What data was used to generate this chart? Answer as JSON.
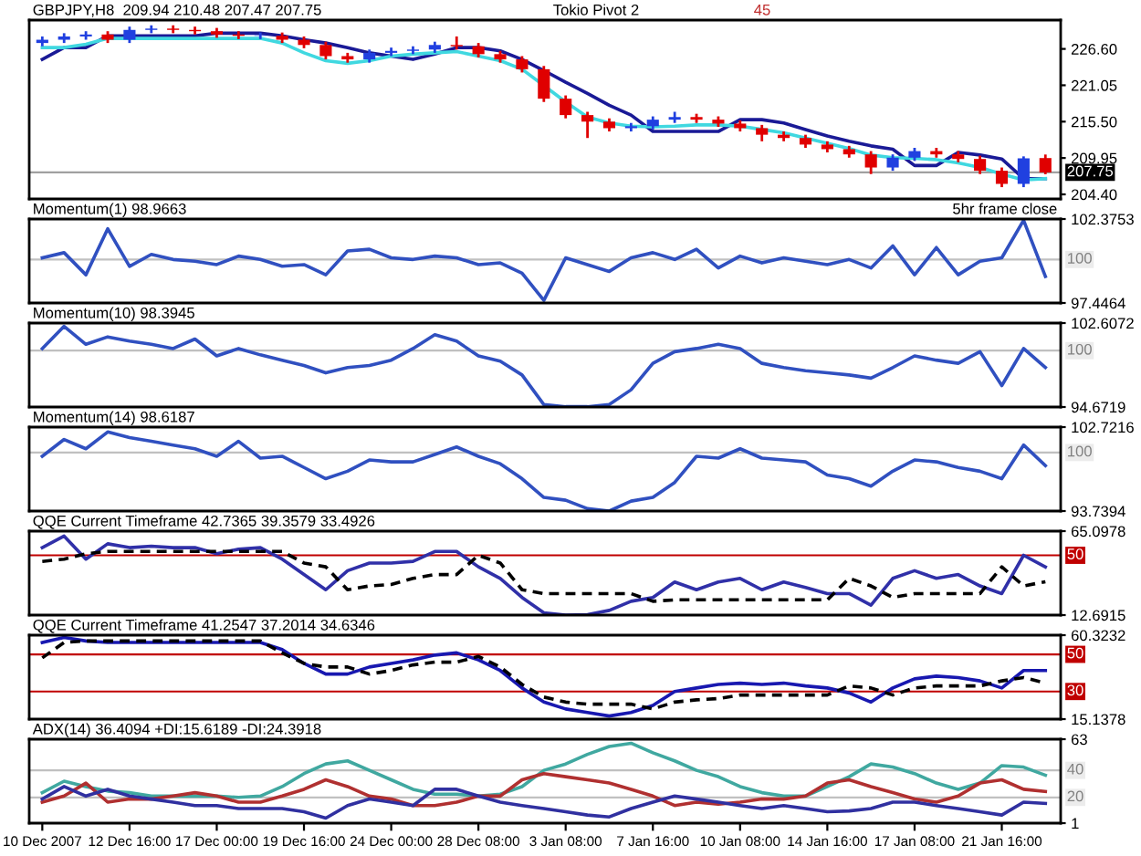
{
  "chart_data": [
    {
      "type": "candlestick",
      "title": "GBPJPY,H8  209.94 210.48 207.47 207.75",
      "categories": [
        null,
        null,
        null,
        null,
        null,
        null,
        null,
        null,
        null,
        null,
        null,
        null,
        null,
        null,
        null,
        null,
        null,
        null,
        null,
        null,
        null,
        null,
        null,
        null,
        null,
        null,
        null,
        null,
        null,
        null,
        null,
        null,
        null,
        null,
        null,
        null,
        null,
        null,
        null,
        null,
        null,
        null,
        null,
        null,
        null,
        null,
        null
      ],
      "ohlc": [
        [
          227.5,
          228.5,
          227.0,
          228.0
        ],
        [
          228.0,
          229.0,
          227.5,
          228.5
        ],
        [
          228.5,
          229.3,
          228.0,
          228.8
        ],
        [
          228.8,
          229.3,
          227.5,
          228.0
        ],
        [
          228.0,
          230.0,
          227.5,
          229.5
        ],
        [
          229.5,
          230.2,
          229.0,
          229.7
        ],
        [
          229.7,
          230.2,
          229.0,
          229.5
        ],
        [
          229.5,
          230.0,
          228.8,
          229.3
        ],
        [
          229.3,
          229.8,
          228.3,
          228.8
        ],
        [
          228.8,
          229.3,
          228.1,
          228.6
        ],
        [
          228.6,
          229.1,
          228.1,
          228.6
        ],
        [
          228.6,
          229.1,
          227.5,
          228.0
        ],
        [
          228.0,
          228.5,
          226.7,
          227.2
        ],
        [
          227.2,
          227.7,
          225.0,
          225.5
        ],
        [
          225.5,
          226.0,
          224.5,
          225.0
        ],
        [
          225.0,
          226.5,
          224.5,
          226.0
        ],
        [
          226.0,
          226.8,
          225.5,
          226.3
        ],
        [
          226.3,
          227.0,
          225.8,
          226.5
        ],
        [
          226.5,
          227.7,
          226.0,
          227.2
        ],
        [
          227.2,
          228.5,
          226.5,
          227.0
        ],
        [
          227.0,
          227.5,
          225.3,
          225.8
        ],
        [
          225.8,
          226.3,
          224.5,
          225.0
        ],
        [
          225.0,
          225.5,
          223.0,
          223.5
        ],
        [
          223.5,
          224.0,
          218.5,
          219.0
        ],
        [
          219.0,
          219.5,
          216.0,
          216.5
        ],
        [
          216.5,
          217.0,
          213.0,
          215.5
        ],
        [
          215.5,
          216.0,
          214.0,
          214.5
        ],
        [
          214.5,
          215.3,
          214.0,
          214.8
        ],
        [
          214.8,
          216.3,
          214.3,
          215.8
        ],
        [
          215.8,
          217.0,
          215.3,
          216.2
        ],
        [
          216.2,
          216.7,
          215.3,
          215.8
        ],
        [
          215.8,
          216.3,
          214.7,
          215.2
        ],
        [
          215.2,
          215.7,
          214.0,
          214.5
        ],
        [
          214.5,
          215.0,
          212.5,
          213.5
        ],
        [
          213.5,
          214.0,
          212.5,
          213.0
        ],
        [
          213.0,
          213.5,
          211.5,
          212.0
        ],
        [
          212.0,
          212.5,
          210.8,
          211.3
        ],
        [
          211.3,
          211.8,
          210.0,
          210.5
        ],
        [
          210.5,
          211.0,
          207.5,
          208.5
        ],
        [
          208.5,
          210.5,
          208.0,
          210.0
        ],
        [
          210.0,
          211.5,
          209.5,
          211.0
        ],
        [
          211.0,
          211.5,
          210.0,
          210.5
        ],
        [
          210.5,
          211.0,
          209.3,
          209.8
        ],
        [
          209.8,
          210.3,
          207.5,
          208.0
        ],
        [
          208.0,
          208.5,
          205.5,
          206.0
        ],
        [
          206.0,
          210.2,
          205.5,
          209.9
        ],
        [
          209.94,
          210.48,
          207.47,
          207.75
        ]
      ],
      "colors": [
        "#2040e0",
        "#2040e0",
        "#2040e0",
        "#e00000",
        "#2040e0",
        "#2040e0",
        "#e00000",
        "#e00000",
        "#e00000",
        "#e00000",
        "#2040e0",
        "#e00000",
        "#e00000",
        "#e00000",
        "#e00000",
        "#2040e0",
        "#2040e0",
        "#2040e0",
        "#2040e0",
        "#e00000",
        "#e00000",
        "#e00000",
        "#e00000",
        "#e00000",
        "#e00000",
        "#e00000",
        "#e00000",
        "#2040e0",
        "#2040e0",
        "#2040e0",
        "#e00000",
        "#e00000",
        "#e00000",
        "#e00000",
        "#e00000",
        "#e00000",
        "#e00000",
        "#e00000",
        "#e00000",
        "#2040e0",
        "#2040e0",
        "#e00000",
        "#e00000",
        "#e00000",
        "#e00000",
        "#2040e0",
        "#e00000"
      ],
      "series": [
        {
          "type": "line",
          "color": "#1a1a96",
          "values": [
            225.0,
            226.8,
            226.8,
            228.6,
            228.6,
            228.6,
            228.6,
            228.6,
            229.0,
            229.0,
            229.0,
            228.6,
            228.0,
            227.5,
            226.8,
            226.0,
            225.5,
            225.0,
            225.8,
            226.8,
            226.8,
            226.3,
            225.0,
            223.3,
            221.5,
            219.8,
            218.0,
            216.5,
            214.0,
            214.0,
            214.0,
            214.0,
            215.8,
            215.8,
            215.3,
            214.3,
            213.3,
            212.5,
            211.8,
            211.3,
            208.8,
            208.8,
            210.8,
            210.4,
            209.8,
            206.8,
            206.8
          ]
        },
        {
          "type": "line",
          "color": "#40d8e0",
          "values": [
            226.8,
            226.8,
            227.3,
            228.2,
            228.2,
            228.2,
            228.2,
            228.2,
            228.2,
            228.2,
            228.2,
            227.5,
            226.0,
            224.8,
            224.4,
            224.8,
            225.5,
            225.8,
            226.0,
            226.2,
            225.5,
            224.8,
            223.5,
            221.0,
            218.5,
            216.2,
            215.3,
            214.8,
            214.7,
            214.8,
            215.0,
            215.0,
            214.8,
            214.3,
            213.8,
            213.0,
            212.2,
            211.4,
            210.4,
            210.0,
            209.9,
            209.7,
            209.2,
            208.5,
            207.5,
            206.6,
            206.8
          ]
        }
      ],
      "ylim": [
        203.7,
        231.0
      ],
      "yticks": [
        {
          "value": 226.6,
          "label": "226.60"
        },
        {
          "value": 221.05,
          "label": "221.05"
        },
        {
          "value": 215.5,
          "label": "215.50"
        },
        {
          "value": 209.95,
          "label": "209.95"
        },
        {
          "value": 204.4,
          "label": "204.40"
        }
      ],
      "ref_lines": [
        {
          "axis": "y",
          "value": 207.75,
          "label": "207.75",
          "color": "#a0a0a0"
        }
      ],
      "annotations": [
        "Tokio Pivot 2",
        "45"
      ],
      "tick_labels": "y"
    },
    {
      "type": "line",
      "title": "Momentum(1) 98.9663",
      "categories": [
        null,
        null,
        null,
        null,
        null,
        null,
        null,
        null,
        null,
        null,
        null,
        null,
        null,
        null,
        null,
        null,
        null,
        null,
        null,
        null,
        null,
        null,
        null,
        null,
        null,
        null,
        null,
        null,
        null,
        null,
        null,
        null,
        null,
        null,
        null,
        null,
        null,
        null,
        null,
        null,
        null,
        null,
        null,
        null,
        null,
        null,
        null
      ],
      "series": [
        {
          "color": "#3050c0",
          "values": [
            100.1,
            100.4,
            99.1,
            101.8,
            99.6,
            100.3,
            100.0,
            99.9,
            99.7,
            100.2,
            100.0,
            99.6,
            99.7,
            99.1,
            100.5,
            100.6,
            100.1,
            100.0,
            100.2,
            100.1,
            99.7,
            99.8,
            99.2,
            97.6,
            100.1,
            99.7,
            99.3,
            100.1,
            100.4,
            100.0,
            100.6,
            99.5,
            100.2,
            99.8,
            100.1,
            99.9,
            99.7,
            100.0,
            99.5,
            100.8,
            99.1,
            100.7,
            99.1,
            99.9,
            100.1,
            102.3,
            99.0
          ]
        }
      ],
      "ylim": [
        97.4464,
        102.3753
      ],
      "yticks": [
        102.3753,
        97.4464
      ],
      "ref_lines": [
        {
          "axis": "y",
          "value": 100,
          "label": "100",
          "color": "#c0c0c0"
        }
      ],
      "annotations": [
        "5hr frame close"
      ],
      "tick_labels": "y"
    },
    {
      "type": "line",
      "title": "Momentum(10) 98.3945",
      "categories": [
        null,
        null,
        null,
        null,
        null,
        null,
        null,
        null,
        null,
        null,
        null,
        null,
        null,
        null,
        null,
        null,
        null,
        null,
        null,
        null,
        null,
        null,
        null,
        null,
        null,
        null,
        null,
        null,
        null,
        null,
        null,
        null,
        null,
        null,
        null,
        null,
        null,
        null,
        null,
        null,
        null,
        null,
        null,
        null,
        null,
        null,
        null
      ],
      "series": [
        {
          "color": "#3050c0",
          "values": [
            100.2,
            102.3,
            100.6,
            101.3,
            100.9,
            100.6,
            100.2,
            101.1,
            99.5,
            100.2,
            99.6,
            99.1,
            98.6,
            97.9,
            98.4,
            98.6,
            99.1,
            100.2,
            101.5,
            100.9,
            99.5,
            99.0,
            97.7,
            94.9,
            94.7,
            94.7,
            94.9,
            96.3,
            98.8,
            99.9,
            100.2,
            100.6,
            100.2,
            98.8,
            98.4,
            98.1,
            97.9,
            97.7,
            97.4,
            98.4,
            99.5,
            99.1,
            98.8,
            99.9,
            96.7,
            100.2,
            98.4
          ]
        }
      ],
      "ylim": [
        94.6719,
        102.6072
      ],
      "yticks": [
        102.6072,
        94.6719
      ],
      "ref_lines": [
        {
          "axis": "y",
          "value": 100,
          "label": "100",
          "color": "#c0c0c0"
        }
      ],
      "tick_labels": "y"
    },
    {
      "type": "line",
      "title": "Momentum(14) 98.6187",
      "categories": [
        null,
        null,
        null,
        null,
        null,
        null,
        null,
        null,
        null,
        null,
        null,
        null,
        null,
        null,
        null,
        null,
        null,
        null,
        null,
        null,
        null,
        null,
        null,
        null,
        null,
        null,
        null,
        null,
        null,
        null,
        null,
        null,
        null,
        null,
        null,
        null,
        null,
        null,
        null,
        null,
        null,
        null,
        null,
        null,
        null,
        null,
        null
      ],
      "series": [
        {
          "color": "#3050c0",
          "values": [
            99.6,
            101.4,
            100.4,
            102.2,
            101.6,
            101.2,
            100.8,
            100.4,
            99.6,
            101.2,
            99.4,
            99.6,
            98.4,
            97.2,
            98.0,
            99.2,
            99.0,
            99.0,
            99.8,
            100.6,
            99.6,
            98.8,
            97.2,
            95.2,
            94.9,
            94.0,
            93.74,
            94.8,
            95.2,
            96.8,
            99.6,
            99.4,
            100.4,
            99.4,
            99.2,
            99.0,
            97.6,
            97.2,
            96.4,
            98.0,
            99.2,
            99.0,
            98.4,
            98.0,
            97.2,
            100.8,
            98.6
          ]
        }
      ],
      "ylim": [
        93.7394,
        102.7216
      ],
      "yticks": [
        102.7216,
        93.7394
      ],
      "ref_lines": [
        {
          "axis": "y",
          "value": 100,
          "label": "100",
          "color": "#c0c0c0"
        }
      ],
      "tick_labels": "y"
    },
    {
      "type": "line",
      "title": "QQE Current Timeframe 42.7365 39.3579 33.4926",
      "categories": [
        null,
        null,
        null,
        null,
        null,
        null,
        null,
        null,
        null,
        null,
        null,
        null,
        null,
        null,
        null,
        null,
        null,
        null,
        null,
        null,
        null,
        null,
        null,
        null,
        null,
        null,
        null,
        null,
        null,
        null,
        null,
        null,
        null,
        null,
        null,
        null,
        null,
        null,
        null,
        null,
        null,
        null,
        null,
        null,
        null,
        null,
        null
      ],
      "series": [
        {
          "color": "#3030a8",
          "values": [
            54.8,
            62.0,
            47.6,
            57.2,
            54.8,
            55.7,
            54.8,
            54.8,
            51.0,
            53.8,
            54.8,
            47.6,
            38.0,
            28.5,
            40.4,
            45.2,
            45.2,
            46.2,
            52.4,
            52.4,
            42.8,
            35.6,
            23.7,
            14.1,
            12.7,
            13.0,
            15.6,
            21.3,
            23.7,
            33.3,
            28.5,
            33.3,
            35.6,
            28.5,
            33.3,
            29.9,
            26.1,
            26.1,
            18.9,
            35.6,
            40.4,
            35.6,
            38.0,
            30.9,
            26.1,
            50.0,
            42.7
          ]
        },
        {
          "color": "#000000",
          "line_style": "dashed",
          "values": [
            46.2,
            47.6,
            51.0,
            52.4,
            52.4,
            52.4,
            52.4,
            52.4,
            52.4,
            52.4,
            52.4,
            52.4,
            45.2,
            42.8,
            28.5,
            30.9,
            31.8,
            35.6,
            38.0,
            38.0,
            50.0,
            45.2,
            28.5,
            26.1,
            26.1,
            26.1,
            26.1,
            26.1,
            21.3,
            22.2,
            22.2,
            22.2,
            22.2,
            22.2,
            22.2,
            22.2,
            22.2,
            35.6,
            30.9,
            23.7,
            26.1,
            26.1,
            26.1,
            26.1,
            42.8,
            30.9,
            33.5
          ]
        }
      ],
      "ylim": [
        12.6915,
        65.0978
      ],
      "yticks": [
        65.0978,
        12.6915
      ],
      "ref_lines": [
        {
          "axis": "y",
          "value": 50,
          "label": "50",
          "color": "#c00000"
        }
      ],
      "tick_labels": "y"
    },
    {
      "type": "line",
      "title": "QQE Current Timeframe 41.2547 37.2014 34.6346",
      "categories": [
        null,
        null,
        null,
        null,
        null,
        null,
        null,
        null,
        null,
        null,
        null,
        null,
        null,
        null,
        null,
        null,
        null,
        null,
        null,
        null,
        null,
        null,
        null,
        null,
        null,
        null,
        null,
        null,
        null,
        null,
        null,
        null,
        null,
        null,
        null,
        null,
        null,
        null,
        null,
        null,
        null,
        null,
        null,
        null,
        null,
        null,
        null
      ],
      "series": [
        {
          "color": "#1818b0",
          "values": [
            56.4,
            59.1,
            57.2,
            56.4,
            56.4,
            56.4,
            56.4,
            56.4,
            56.4,
            56.4,
            56.4,
            52.6,
            45.1,
            39.4,
            39.4,
            43.2,
            45.1,
            47.0,
            49.6,
            50.8,
            47.0,
            41.3,
            31.9,
            24.3,
            20.6,
            18.7,
            16.8,
            18.7,
            22.5,
            30.0,
            31.9,
            33.8,
            34.5,
            33.8,
            34.5,
            33.0,
            31.9,
            29.2,
            24.3,
            31.9,
            36.8,
            38.3,
            37.5,
            35.7,
            31.9,
            41.3,
            41.3
          ]
        },
        {
          "color": "#000000",
          "line_style": "dashed",
          "values": [
            48.1,
            56.4,
            57.2,
            57.2,
            57.2,
            57.2,
            57.2,
            57.2,
            57.2,
            57.2,
            57.2,
            50.8,
            45.1,
            43.2,
            43.2,
            39.4,
            41.3,
            44.3,
            45.8,
            45.8,
            48.9,
            43.2,
            33.8,
            27.0,
            24.3,
            23.2,
            23.2,
            23.2,
            20.6,
            24.3,
            25.5,
            26.2,
            28.1,
            28.1,
            28.1,
            28.1,
            28.1,
            33.0,
            31.9,
            28.1,
            31.9,
            33.0,
            33.0,
            33.0,
            35.7,
            37.5,
            34.6
          ]
        }
      ],
      "ylim": [
        15.1378,
        60.3232
      ],
      "yticks": [
        60.3232,
        15.1378
      ],
      "ref_lines": [
        {
          "axis": "y",
          "value": 50,
          "label": "50",
          "color": "#c00000"
        },
        {
          "axis": "y",
          "value": 30,
          "label": "30",
          "color": "#c00000"
        }
      ],
      "tick_labels": "y"
    },
    {
      "type": "line",
      "title": "ADX(14) 36.4094 +DI:15.6189 -DI:24.3918",
      "categories": [
        "10 Dec 2007",
        null,
        null,
        null,
        "12 Dec 16:00",
        null,
        null,
        null,
        "17 Dec 00:00",
        null,
        null,
        null,
        "19 Dec 16:00",
        null,
        null,
        null,
        "24 Dec 00:00",
        null,
        null,
        null,
        "28 Dec 08:00",
        null,
        null,
        null,
        "3 Jan 08:00",
        null,
        null,
        null,
        "7 Jan 16:00",
        null,
        null,
        null,
        "10 Jan 08:00",
        null,
        null,
        null,
        "14 Jan 16:00",
        null,
        null,
        null,
        "17 Jan 08:00",
        null,
        null,
        null,
        "21 Jan 16:00",
        null,
        null
      ],
      "series": [
        {
          "color": "#40a8a0",
          "values": [
            23.5,
            32.0,
            28.0,
            24.7,
            23.5,
            21.0,
            21.0,
            21.0,
            21.0,
            20.0,
            21.0,
            28.0,
            37.6,
            44.7,
            47.0,
            40.0,
            33.0,
            26.0,
            22.4,
            22.4,
            21.0,
            22.4,
            28.0,
            40.0,
            44.7,
            51.8,
            57.6,
            60.0,
            53.0,
            47.0,
            40.0,
            35.3,
            28.0,
            23.5,
            21.0,
            21.0,
            28.0,
            35.3,
            44.7,
            42.4,
            37.6,
            30.6,
            26.0,
            30.6,
            43.5,
            42.4,
            36.4
          ]
        },
        {
          "color": "#b03030",
          "values": [
            16.5,
            21.0,
            30.6,
            16.5,
            18.8,
            18.8,
            21.0,
            23.5,
            21.0,
            16.5,
            16.5,
            21.0,
            26.0,
            33.0,
            28.0,
            21.0,
            18.8,
            14.0,
            14.0,
            16.5,
            21.0,
            21.0,
            33.0,
            37.6,
            35.3,
            33.0,
            30.6,
            26.0,
            21.0,
            14.0,
            16.5,
            15.0,
            16.5,
            18.8,
            18.8,
            21.0,
            30.6,
            33.0,
            28.0,
            23.5,
            18.8,
            16.5,
            21.0,
            30.6,
            33.0,
            26.0,
            24.4
          ]
        },
        {
          "color": "#3030a0",
          "values": [
            18.8,
            28.0,
            21.0,
            26.0,
            21.0,
            18.8,
            16.5,
            14.0,
            14.0,
            11.8,
            11.8,
            11.8,
            9.4,
            4.7,
            14.0,
            18.8,
            16.5,
            14.0,
            26.0,
            26.0,
            21.0,
            16.5,
            14.0,
            11.8,
            9.4,
            7.0,
            5.6,
            11.8,
            16.5,
            21.0,
            18.8,
            16.5,
            14.0,
            11.8,
            14.0,
            11.8,
            9.4,
            10.0,
            11.8,
            16.5,
            16.5,
            14.0,
            11.8,
            9.4,
            7.0,
            16.5,
            15.6
          ]
        }
      ],
      "ylim": [
        1,
        63
      ],
      "yticks": [
        63,
        1
      ],
      "ref_lines": [
        {
          "axis": "y",
          "value": 40,
          "label": "40",
          "color": "#c0c0c0"
        },
        {
          "axis": "y",
          "value": 20,
          "label": "20",
          "color": "#c0c0c0"
        }
      ]
    }
  ]
}
